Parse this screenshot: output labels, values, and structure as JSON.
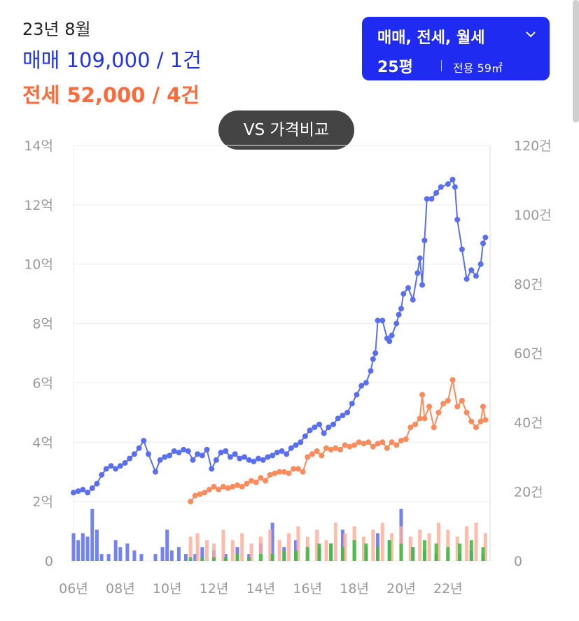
{
  "summary": {
    "month": "23년 8월",
    "sale_label": "매매",
    "sale_value": "109,000 / 1건",
    "jeonse_label": "전세",
    "jeonse_value": "52,000 / 4건"
  },
  "selector": {
    "type_label": "매매, 전세, 월세",
    "pyeong": "25평",
    "area": "전용 59㎡"
  },
  "compare_button": "VS 가격비교",
  "colors": {
    "sale": "#5a6ff0",
    "jeonse": "#ff8a5c",
    "sale_bar": "#5a6ff0",
    "jeonse_bar": "#ffab95",
    "wolse_bar": "#44bb44",
    "selector_bg": "#1f2bf0"
  },
  "chart_data": {
    "type": "line",
    "x_range": [
      2006.0,
      2023.8
    ],
    "x_ticks": [
      "06년",
      "08년",
      "10년",
      "12년",
      "14년",
      "16년",
      "18년",
      "20년",
      "22년"
    ],
    "x_tick_years": [
      2006,
      2008,
      2010,
      2012,
      2014,
      2016,
      2018,
      2020,
      2022
    ],
    "y_left_range": [
      0,
      14
    ],
    "y_left_ticks": [
      "0",
      "2억",
      "4억",
      "6억",
      "8억",
      "10억",
      "12억",
      "14억"
    ],
    "y_right_range": [
      0,
      120
    ],
    "y_right_ticks": [
      "0",
      "20건",
      "40건",
      "60건",
      "80건",
      "100건",
      "120건"
    ],
    "grid": true,
    "series": [
      {
        "name": "매매",
        "unit": "억",
        "points": [
          [
            2006.0,
            2.3
          ],
          [
            2006.2,
            2.35
          ],
          [
            2006.4,
            2.4
          ],
          [
            2006.6,
            2.3
          ],
          [
            2006.8,
            2.45
          ],
          [
            2007.0,
            2.6
          ],
          [
            2007.2,
            2.9
          ],
          [
            2007.4,
            3.1
          ],
          [
            2007.6,
            3.2
          ],
          [
            2007.8,
            3.1
          ],
          [
            2008.0,
            3.2
          ],
          [
            2008.2,
            3.3
          ],
          [
            2008.4,
            3.45
          ],
          [
            2008.6,
            3.6
          ],
          [
            2008.8,
            3.8
          ],
          [
            2009.0,
            4.05
          ],
          [
            2009.2,
            3.6
          ],
          [
            2009.5,
            3.0
          ],
          [
            2009.7,
            3.4
          ],
          [
            2009.9,
            3.5
          ],
          [
            2010.1,
            3.55
          ],
          [
            2010.3,
            3.7
          ],
          [
            2010.5,
            3.65
          ],
          [
            2010.7,
            3.75
          ],
          [
            2010.9,
            3.7
          ],
          [
            2011.1,
            3.4
          ],
          [
            2011.3,
            3.6
          ],
          [
            2011.5,
            3.55
          ],
          [
            2011.7,
            3.75
          ],
          [
            2011.9,
            3.1
          ],
          [
            2012.1,
            3.4
          ],
          [
            2012.3,
            3.65
          ],
          [
            2012.5,
            3.7
          ],
          [
            2012.7,
            3.5
          ],
          [
            2012.9,
            3.6
          ],
          [
            2013.1,
            3.45
          ],
          [
            2013.3,
            3.5
          ],
          [
            2013.5,
            3.4
          ],
          [
            2013.7,
            3.35
          ],
          [
            2013.9,
            3.45
          ],
          [
            2014.1,
            3.4
          ],
          [
            2014.3,
            3.5
          ],
          [
            2014.5,
            3.55
          ],
          [
            2014.7,
            3.65
          ],
          [
            2014.9,
            3.7
          ],
          [
            2015.1,
            3.6
          ],
          [
            2015.3,
            3.8
          ],
          [
            2015.5,
            3.9
          ],
          [
            2015.7,
            4.0
          ],
          [
            2015.9,
            4.2
          ],
          [
            2016.1,
            4.4
          ],
          [
            2016.3,
            4.5
          ],
          [
            2016.5,
            4.6
          ],
          [
            2016.7,
            4.3
          ],
          [
            2016.9,
            4.5
          ],
          [
            2017.1,
            4.6
          ],
          [
            2017.3,
            4.8
          ],
          [
            2017.5,
            4.9
          ],
          [
            2017.7,
            5.0
          ],
          [
            2017.9,
            5.3
          ],
          [
            2018.1,
            5.6
          ],
          [
            2018.3,
            5.9
          ],
          [
            2018.5,
            6.0
          ],
          [
            2018.7,
            6.4
          ],
          [
            2018.8,
            6.8
          ],
          [
            2018.9,
            7.0
          ],
          [
            2019.0,
            8.1
          ],
          [
            2019.2,
            8.1
          ],
          [
            2019.4,
            7.5
          ],
          [
            2019.5,
            7.4
          ],
          [
            2019.6,
            7.6
          ],
          [
            2019.8,
            8.0
          ],
          [
            2019.9,
            8.3
          ],
          [
            2020.0,
            8.5
          ],
          [
            2020.1,
            9.0
          ],
          [
            2020.3,
            9.2
          ],
          [
            2020.5,
            8.8
          ],
          [
            2020.7,
            9.7
          ],
          [
            2020.8,
            10.2
          ],
          [
            2020.9,
            9.3
          ],
          [
            2021.0,
            10.8
          ],
          [
            2021.1,
            12.2
          ],
          [
            2021.3,
            12.2
          ],
          [
            2021.5,
            12.4
          ],
          [
            2021.7,
            12.6
          ],
          [
            2022.0,
            12.7
          ],
          [
            2022.2,
            12.85
          ],
          [
            2022.3,
            12.6
          ],
          [
            2022.4,
            11.5
          ],
          [
            2022.6,
            10.5
          ],
          [
            2022.8,
            9.5
          ],
          [
            2023.0,
            9.8
          ],
          [
            2023.2,
            9.6
          ],
          [
            2023.4,
            10.0
          ],
          [
            2023.5,
            10.7
          ],
          [
            2023.6,
            10.9
          ]
        ]
      },
      {
        "name": "전세",
        "unit": "억",
        "points": [
          [
            2011.0,
            2.0
          ],
          [
            2011.2,
            2.2
          ],
          [
            2011.4,
            2.25
          ],
          [
            2011.6,
            2.3
          ],
          [
            2011.8,
            2.4
          ],
          [
            2012.0,
            2.5
          ],
          [
            2012.2,
            2.4
          ],
          [
            2012.4,
            2.5
          ],
          [
            2012.6,
            2.45
          ],
          [
            2012.8,
            2.5
          ],
          [
            2013.0,
            2.55
          ],
          [
            2013.2,
            2.5
          ],
          [
            2013.4,
            2.6
          ],
          [
            2013.6,
            2.7
          ],
          [
            2013.8,
            2.65
          ],
          [
            2014.0,
            2.8
          ],
          [
            2014.2,
            2.7
          ],
          [
            2014.4,
            2.9
          ],
          [
            2014.6,
            2.95
          ],
          [
            2014.8,
            3.0
          ],
          [
            2015.0,
            3.0
          ],
          [
            2015.2,
            2.95
          ],
          [
            2015.4,
            3.1
          ],
          [
            2015.6,
            3.1
          ],
          [
            2015.8,
            3.0
          ],
          [
            2016.0,
            3.5
          ],
          [
            2016.2,
            3.6
          ],
          [
            2016.4,
            3.7
          ],
          [
            2016.6,
            3.55
          ],
          [
            2016.8,
            3.8
          ],
          [
            2017.0,
            3.75
          ],
          [
            2017.2,
            3.8
          ],
          [
            2017.4,
            3.75
          ],
          [
            2017.6,
            3.9
          ],
          [
            2017.8,
            3.85
          ],
          [
            2018.0,
            3.9
          ],
          [
            2018.2,
            4.0
          ],
          [
            2018.4,
            3.95
          ],
          [
            2018.6,
            4.0
          ],
          [
            2018.8,
            3.85
          ],
          [
            2019.0,
            3.95
          ],
          [
            2019.2,
            4.0
          ],
          [
            2019.4,
            3.8
          ],
          [
            2019.6,
            4.0
          ],
          [
            2019.8,
            3.9
          ],
          [
            2020.0,
            4.05
          ],
          [
            2020.2,
            4.1
          ],
          [
            2020.4,
            4.5
          ],
          [
            2020.6,
            4.6
          ],
          [
            2020.8,
            4.8
          ],
          [
            2020.9,
            5.6
          ],
          [
            2021.0,
            4.8
          ],
          [
            2021.2,
            5.2
          ],
          [
            2021.4,
            4.5
          ],
          [
            2021.6,
            5.0
          ],
          [
            2021.8,
            5.3
          ],
          [
            2022.0,
            5.4
          ],
          [
            2022.2,
            6.1
          ],
          [
            2022.4,
            5.2
          ],
          [
            2022.6,
            5.4
          ],
          [
            2022.8,
            5.0
          ],
          [
            2023.0,
            4.7
          ],
          [
            2023.2,
            4.5
          ],
          [
            2023.4,
            4.7
          ],
          [
            2023.5,
            5.2
          ],
          [
            2023.6,
            4.75
          ]
        ]
      }
    ],
    "volume_series": [
      {
        "name": "매매 거래량",
        "unit": "건",
        "points": [
          [
            2006.0,
            8
          ],
          [
            2006.2,
            6
          ],
          [
            2006.4,
            8
          ],
          [
            2006.6,
            7
          ],
          [
            2006.8,
            15
          ],
          [
            2007.0,
            9
          ],
          [
            2007.2,
            2
          ],
          [
            2007.5,
            2
          ],
          [
            2007.8,
            6
          ],
          [
            2008.0,
            4
          ],
          [
            2008.3,
            5
          ],
          [
            2008.6,
            3
          ],
          [
            2008.9,
            2
          ],
          [
            2009.5,
            2
          ],
          [
            2009.8,
            4
          ],
          [
            2010.0,
            9
          ],
          [
            2010.2,
            3
          ],
          [
            2010.5,
            4
          ],
          [
            2010.8,
            2
          ],
          [
            2011.2,
            2
          ],
          [
            2011.5,
            4
          ],
          [
            2012.0,
            3
          ],
          [
            2012.5,
            2
          ],
          [
            2013.0,
            4
          ],
          [
            2013.5,
            2
          ],
          [
            2014.0,
            5
          ],
          [
            2014.5,
            11
          ],
          [
            2015.0,
            4
          ],
          [
            2015.5,
            6
          ],
          [
            2016.0,
            3
          ],
          [
            2016.5,
            4
          ],
          [
            2017.0,
            5
          ],
          [
            2017.5,
            9
          ],
          [
            2018.0,
            6
          ],
          [
            2018.5,
            4
          ],
          [
            2019.0,
            8
          ],
          [
            2019.5,
            6
          ],
          [
            2020.0,
            15
          ],
          [
            2020.5,
            4
          ],
          [
            2021.0,
            3
          ],
          [
            2021.5,
            2
          ],
          [
            2022.0,
            3
          ],
          [
            2022.5,
            2
          ],
          [
            2023.0,
            3
          ],
          [
            2023.5,
            2
          ]
        ]
      },
      {
        "name": "전세 거래량",
        "unit": "건",
        "points": [
          [
            2011.0,
            7
          ],
          [
            2011.3,
            8
          ],
          [
            2011.7,
            6
          ],
          [
            2012.0,
            5
          ],
          [
            2012.4,
            9
          ],
          [
            2012.8,
            6
          ],
          [
            2013.2,
            8
          ],
          [
            2013.6,
            5
          ],
          [
            2014.0,
            7
          ],
          [
            2014.4,
            9
          ],
          [
            2014.8,
            6
          ],
          [
            2015.2,
            8
          ],
          [
            2015.6,
            10
          ],
          [
            2016.0,
            7
          ],
          [
            2016.4,
            9
          ],
          [
            2016.8,
            6
          ],
          [
            2017.2,
            11
          ],
          [
            2017.6,
            8
          ],
          [
            2018.0,
            10
          ],
          [
            2018.4,
            7
          ],
          [
            2018.8,
            9
          ],
          [
            2019.2,
            11
          ],
          [
            2019.6,
            8
          ],
          [
            2020.0,
            10
          ],
          [
            2020.4,
            7
          ],
          [
            2020.8,
            9
          ],
          [
            2021.2,
            8
          ],
          [
            2021.6,
            11
          ],
          [
            2022.0,
            9
          ],
          [
            2022.4,
            7
          ],
          [
            2022.8,
            10
          ],
          [
            2023.2,
            11
          ],
          [
            2023.6,
            8
          ]
        ]
      },
      {
        "name": "월세 거래량",
        "unit": "건",
        "points": [
          [
            2011.0,
            1
          ],
          [
            2011.5,
            1
          ],
          [
            2012.0,
            1
          ],
          [
            2012.5,
            1
          ],
          [
            2013.0,
            2
          ],
          [
            2013.5,
            1
          ],
          [
            2014.0,
            2
          ],
          [
            2014.5,
            2
          ],
          [
            2015.0,
            3
          ],
          [
            2015.5,
            3
          ],
          [
            2016.0,
            4
          ],
          [
            2016.5,
            5
          ],
          [
            2017.0,
            5
          ],
          [
            2017.5,
            4
          ],
          [
            2018.0,
            6
          ],
          [
            2018.5,
            5
          ],
          [
            2019.0,
            4
          ],
          [
            2019.5,
            6
          ],
          [
            2020.0,
            5
          ],
          [
            2020.5,
            4
          ],
          [
            2021.0,
            6
          ],
          [
            2021.5,
            5
          ],
          [
            2022.0,
            4
          ],
          [
            2022.5,
            5
          ],
          [
            2023.0,
            6
          ],
          [
            2023.5,
            4
          ]
        ]
      }
    ]
  }
}
